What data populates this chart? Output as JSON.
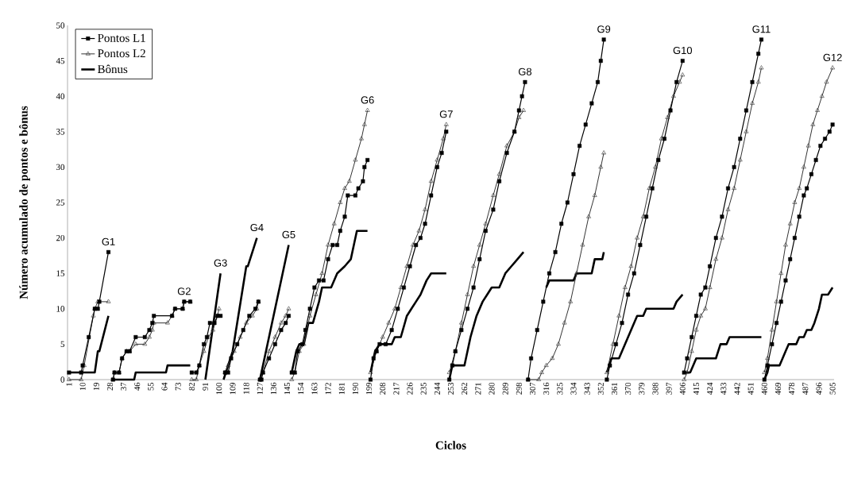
{
  "chart_data": {
    "type": "line",
    "xlabel": "Ciclos",
    "ylabel": "Número acumulado de pontos e bônus",
    "xlim": [
      0,
      506
    ],
    "ylim": [
      0,
      50
    ],
    "xticks": [
      1,
      10,
      19,
      28,
      37,
      46,
      55,
      64,
      73,
      82,
      91,
      100,
      109,
      118,
      127,
      136,
      145,
      154,
      163,
      172,
      181,
      190,
      199,
      208,
      217,
      226,
      235,
      244,
      253,
      262,
      271,
      280,
      289,
      298,
      307,
      316,
      325,
      334,
      343,
      352,
      361,
      370,
      379,
      388,
      397,
      406,
      415,
      424,
      433,
      442,
      451,
      460,
      469,
      478,
      487,
      496,
      505
    ],
    "yticks": [
      0,
      5,
      10,
      15,
      20,
      25,
      30,
      35,
      40,
      45,
      50
    ],
    "legend": "top left",
    "series": [
      {
        "name": "Pontos L1",
        "color": "#000000",
        "marker": "square",
        "x": [
          1,
          9,
          10,
          14,
          18,
          20,
          21,
          27,
          28.5,
          30,
          31,
          34,
          36,
          39,
          41,
          45,
          51,
          54,
          56,
          57,
          69,
          71,
          76,
          77,
          81,
          81.5,
          82,
          85,
          87,
          90,
          92,
          94,
          97,
          99,
          101,
          102,
          104,
          106,
          108,
          112,
          116,
          120,
          124,
          126,
          126.5,
          127,
          128,
          129,
          133,
          137,
          141,
          144,
          146,
          147,
          148,
          150,
          152,
          155,
          157,
          160,
          163,
          166,
          169,
          172,
          175,
          178,
          180,
          183,
          185,
          190,
          192,
          195,
          196,
          198,
          199,
          200,
          202,
          204,
          206,
          210,
          214,
          218,
          222,
          226,
          230,
          233,
          236,
          240,
          244,
          247,
          250,
          251,
          252,
          254,
          256,
          260,
          264,
          268,
          272,
          276,
          281,
          285,
          290,
          295,
          298,
          300,
          302,
          303,
          304,
          306,
          310,
          314,
          318,
          322,
          326,
          330,
          334,
          338,
          342,
          346,
          350,
          352,
          354,
          355,
          356,
          358,
          362,
          366,
          370,
          374,
          378,
          382,
          386,
          390,
          394,
          398,
          402,
          406,
          406.5,
          407,
          409,
          412,
          415,
          418,
          421,
          424,
          428,
          432,
          436,
          440,
          444,
          448,
          452,
          456,
          458,
          459,
          460,
          462,
          465,
          468,
          471,
          474,
          477,
          480,
          483,
          486,
          488,
          491,
          494,
          497,
          500,
          503,
          505
        ],
        "values": [
          1,
          1,
          2,
          6,
          10,
          10,
          11,
          18,
          null,
          0,
          1,
          1,
          3,
          4,
          4,
          6,
          6,
          7,
          8,
          9,
          9,
          10,
          10,
          11,
          11,
          null,
          1,
          1,
          2,
          5,
          6,
          8,
          8,
          9,
          9,
          null,
          1,
          1,
          3,
          5,
          7,
          9,
          10,
          11,
          null,
          0,
          0,
          1,
          3,
          5,
          7,
          8,
          9,
          null,
          1,
          1,
          4,
          5,
          7,
          10,
          13,
          14,
          14,
          17,
          19,
          19,
          21,
          23,
          26,
          26,
          27,
          28,
          30,
          31,
          null,
          0,
          3,
          4,
          5,
          5,
          7,
          10,
          13,
          16,
          19,
          20,
          22,
          26,
          30,
          32,
          35,
          null,
          0,
          2,
          4,
          7,
          10,
          13,
          17,
          21,
          24,
          28,
          32,
          35,
          38,
          40,
          42,
          null,
          0,
          3,
          7,
          11,
          15,
          18,
          22,
          25,
          29,
          33,
          36,
          39,
          42,
          45,
          48,
          null,
          0,
          2,
          5,
          8,
          12,
          15,
          19,
          23,
          27,
          31,
          34,
          38,
          42,
          45,
          null,
          1,
          3,
          6,
          9,
          12,
          13,
          16,
          20,
          23,
          27,
          30,
          34,
          38,
          42,
          46,
          48,
          null,
          0,
          2,
          5,
          8,
          11,
          14,
          17,
          20,
          23,
          26,
          27,
          29,
          31,
          33,
          34,
          35,
          36
        ]
      },
      {
        "name": "Pontos L2",
        "color": "#333333",
        "marker": "triangle",
        "x": [
          1,
          9,
          11,
          17,
          18,
          20,
          27,
          28.5,
          30,
          31,
          34,
          36,
          39,
          41,
          45,
          51,
          54,
          56,
          57,
          66,
          69,
          71,
          76,
          77,
          81,
          81.5,
          82,
          85,
          87,
          90,
          93,
          96,
          99,
          100,
          102,
          104,
          106,
          110,
          114,
          118,
          122,
          125,
          126,
          126.5,
          127,
          129,
          133,
          137,
          141,
          144,
          146,
          147,
          148,
          150,
          153,
          156,
          160,
          164,
          168,
          172,
          176,
          180,
          183,
          186,
          190,
          194,
          196,
          198,
          199,
          200,
          204,
          208,
          212,
          216,
          220,
          224,
          228,
          232,
          236,
          240,
          244,
          248,
          250,
          251,
          252,
          256,
          260,
          264,
          268,
          272,
          276,
          281,
          285,
          290,
          295,
          298,
          301,
          303,
          304,
          311,
          313,
          316,
          320,
          324,
          328,
          332,
          336,
          340,
          344,
          348,
          352,
          354,
          355,
          356,
          360,
          364,
          368,
          372,
          376,
          380,
          384,
          388,
          392,
          396,
          400,
          404,
          406,
          406.5,
          407,
          409,
          412,
          415,
          418,
          421,
          424,
          428,
          432,
          436,
          440,
          444,
          448,
          452,
          456,
          458,
          459,
          460,
          462,
          465,
          468,
          471,
          474,
          477,
          480,
          483,
          486,
          489,
          492,
          495,
          498,
          501,
          505
        ],
        "values": [
          0,
          0,
          2,
          9,
          10,
          11,
          11,
          null,
          0,
          1,
          1,
          3,
          4,
          4,
          5,
          5,
          6,
          7,
          8,
          8,
          9,
          10,
          10,
          11,
          11,
          null,
          0,
          0,
          2,
          4,
          6,
          7,
          9,
          10,
          null,
          1,
          2,
          4,
          6,
          8,
          9,
          10,
          11,
          null,
          0,
          1,
          4,
          6,
          8,
          9,
          10,
          null,
          0,
          1,
          4,
          5,
          9,
          12,
          15,
          19,
          22,
          25,
          27,
          28,
          31,
          34,
          36,
          38,
          null,
          1,
          4,
          6,
          8,
          10,
          13,
          16,
          19,
          21,
          24,
          28,
          31,
          34,
          36,
          null,
          1,
          4,
          8,
          12,
          16,
          19,
          22,
          26,
          29,
          33,
          35,
          37,
          38,
          null,
          0,
          0,
          1,
          2,
          3,
          5,
          8,
          11,
          15,
          19,
          23,
          26,
          30,
          32,
          null,
          1,
          5,
          9,
          13,
          16,
          20,
          23,
          27,
          30,
          34,
          37,
          40,
          42,
          43,
          null,
          0,
          1,
          4,
          7,
          9,
          10,
          13,
          17,
          20,
          24,
          27,
          31,
          35,
          39,
          42,
          44,
          null,
          1,
          3,
          7,
          11,
          15,
          19,
          22,
          25,
          27,
          30,
          33,
          36,
          38,
          40,
          42,
          44
        ]
      },
      {
        "name": "Bônus",
        "color": "#000000",
        "marker": "none",
        "x": [
          1,
          18,
          20,
          21,
          27,
          28.5,
          30,
          44,
          45,
          65,
          66,
          81,
          85,
          91,
          101,
          102,
          103,
          109,
          118,
          119,
          125,
          126,
          127,
          146,
          147,
          148,
          151,
          153,
          156,
          159,
          162,
          166,
          168,
          174,
          178,
          183,
          187,
          189,
          191,
          198,
          199,
          200,
          203,
          206,
          214,
          216,
          220,
          224,
          227,
          230,
          233,
          237,
          240,
          250,
          251,
          252,
          254,
          262,
          266,
          270,
          274,
          277,
          280,
          285,
          289,
          293,
          297,
          301,
          308,
          316,
          318,
          334,
          336,
          346,
          348,
          353,
          354,
          355,
          356,
          359,
          364,
          368,
          372,
          376,
          380,
          382,
          400,
          402,
          406,
          406.5,
          407,
          411,
          413,
          415,
          428,
          431,
          435,
          437,
          458,
          459,
          460,
          462,
          463,
          470,
          472,
          474,
          476,
          481,
          483,
          486,
          488,
          491,
          493,
          496,
          498,
          502,
          505
        ],
        "values": [
          1,
          1,
          4,
          4,
          9,
          null,
          0,
          0,
          1,
          1,
          2,
          2,
          null,
          0,
          15,
          null,
          0,
          4,
          16,
          16,
          20,
          null,
          0,
          19,
          null,
          1,
          4,
          5,
          5,
          8,
          8,
          11,
          13,
          13,
          15,
          16,
          17,
          19,
          21,
          21,
          null,
          1,
          4,
          5,
          5,
          6,
          6,
          9,
          10,
          11,
          12,
          14,
          15,
          15,
          null,
          0,
          2,
          2,
          6,
          9,
          11,
          12,
          13,
          13,
          15,
          16,
          17,
          18,
          null,
          13,
          14,
          14,
          15,
          15,
          17,
          17,
          18,
          null,
          1,
          3,
          3,
          5,
          7,
          9,
          9,
          10,
          10,
          11,
          12,
          null,
          1,
          1,
          2,
          3,
          3,
          5,
          5,
          6,
          6,
          null,
          0,
          1,
          2,
          2,
          3,
          4,
          5,
          5,
          6,
          6,
          7,
          7,
          8,
          10,
          12,
          12,
          13
        ]
      }
    ],
    "annotations": [
      "G1",
      "G2",
      "G3",
      "G4",
      "G5",
      "G6",
      "G7",
      "G8",
      "G9",
      "G10",
      "G11",
      "G12"
    ]
  }
}
